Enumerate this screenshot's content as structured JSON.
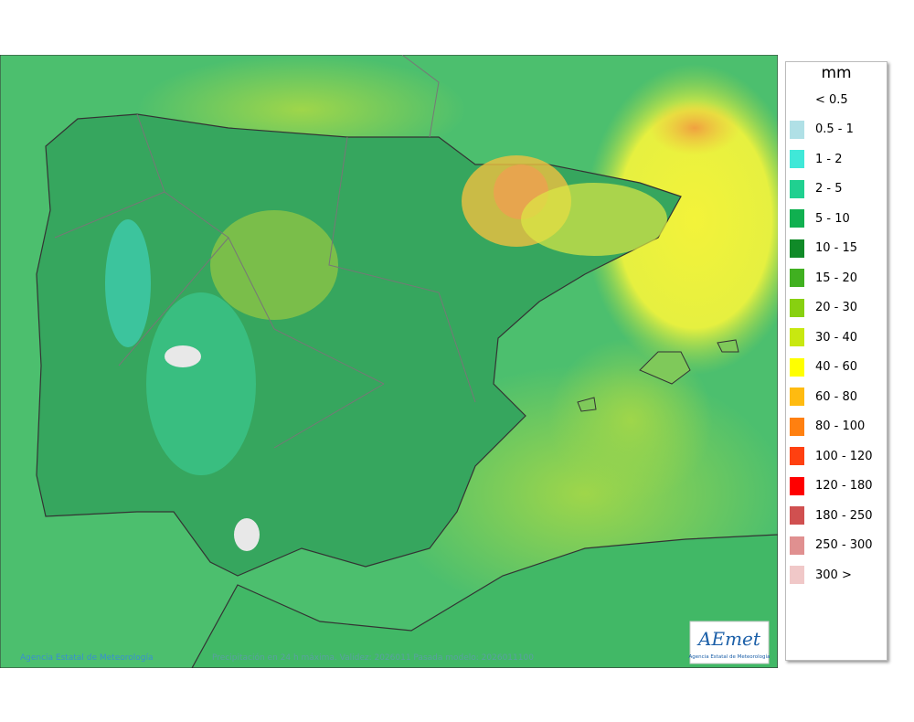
{
  "legend": {
    "title": "mm",
    "items": [
      {
        "label": "< 0.5",
        "color": null
      },
      {
        "label": "0.5 - 1",
        "color": "#b0e0e6"
      },
      {
        "label": "1 - 2",
        "color": "#40e8d8"
      },
      {
        "label": "2 - 5",
        "color": "#20d090"
      },
      {
        "label": "5 - 10",
        "color": "#10b050"
      },
      {
        "label": "10 - 15",
        "color": "#108a28"
      },
      {
        "label": "15 - 20",
        "color": "#40b020"
      },
      {
        "label": "20 - 30",
        "color": "#88d010"
      },
      {
        "label": "30 - 40",
        "color": "#c8e810"
      },
      {
        "label": "40 - 60",
        "color": "#ffff00"
      },
      {
        "label": "60 - 80",
        "color": "#ffbb10"
      },
      {
        "label": "80 - 100",
        "color": "#ff8010"
      },
      {
        "label": "100 - 120",
        "color": "#ff4010"
      },
      {
        "label": "120 - 180",
        "color": "#ff0000"
      },
      {
        "label": "180 - 250",
        "color": "#d05050"
      },
      {
        "label": "250 - 300",
        "color": "#e09090"
      },
      {
        "label": "300 >",
        "color": "#f0c8c8"
      }
    ]
  },
  "footer": {
    "agency": "Agencia Estatal de Meteorología",
    "caption": "Precipitación en 24 h máxima. Validez: 2026011 Pasada modelo: 2026011100"
  },
  "logo": {
    "name": "AEmet",
    "subtitle": "Agencia Estatal de Meteorología"
  }
}
